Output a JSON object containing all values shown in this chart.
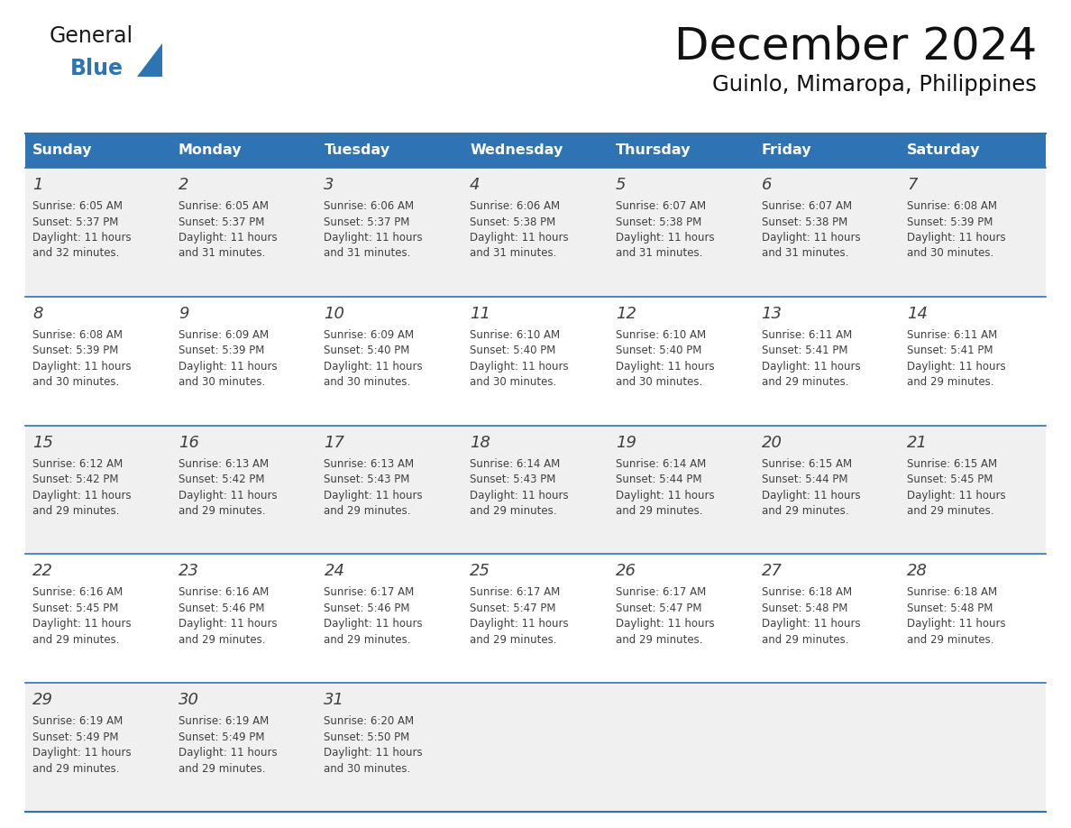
{
  "title": "December 2024",
  "subtitle": "Guinlo, Mimaropa, Philippines",
  "header_bg": "#2E74B5",
  "header_text": "#FFFFFF",
  "header_days": [
    "Sunday",
    "Monday",
    "Tuesday",
    "Wednesday",
    "Thursday",
    "Friday",
    "Saturday"
  ],
  "row_bg_odd": "#F0F0F0",
  "row_bg_even": "#FFFFFF",
  "divider_color": "#2E74B5",
  "text_color": "#404040",
  "date_color": "#404040",
  "logo_general_color": "#1a1a1a",
  "logo_blue_color": "#2E74B5",
  "weeks": [
    {
      "days": [
        {
          "date": "1",
          "sunrise": "6:05 AM",
          "sunset": "5:37 PM",
          "daylight": "11 hours and 32 minutes."
        },
        {
          "date": "2",
          "sunrise": "6:05 AM",
          "sunset": "5:37 PM",
          "daylight": "11 hours and 31 minutes."
        },
        {
          "date": "3",
          "sunrise": "6:06 AM",
          "sunset": "5:37 PM",
          "daylight": "11 hours and 31 minutes."
        },
        {
          "date": "4",
          "sunrise": "6:06 AM",
          "sunset": "5:38 PM",
          "daylight": "11 hours and 31 minutes."
        },
        {
          "date": "5",
          "sunrise": "6:07 AM",
          "sunset": "5:38 PM",
          "daylight": "11 hours and 31 minutes."
        },
        {
          "date": "6",
          "sunrise": "6:07 AM",
          "sunset": "5:38 PM",
          "daylight": "11 hours and 31 minutes."
        },
        {
          "date": "7",
          "sunrise": "6:08 AM",
          "sunset": "5:39 PM",
          "daylight": "11 hours and 30 minutes."
        }
      ]
    },
    {
      "days": [
        {
          "date": "8",
          "sunrise": "6:08 AM",
          "sunset": "5:39 PM",
          "daylight": "11 hours and 30 minutes."
        },
        {
          "date": "9",
          "sunrise": "6:09 AM",
          "sunset": "5:39 PM",
          "daylight": "11 hours and 30 minutes."
        },
        {
          "date": "10",
          "sunrise": "6:09 AM",
          "sunset": "5:40 PM",
          "daylight": "11 hours and 30 minutes."
        },
        {
          "date": "11",
          "sunrise": "6:10 AM",
          "sunset": "5:40 PM",
          "daylight": "11 hours and 30 minutes."
        },
        {
          "date": "12",
          "sunrise": "6:10 AM",
          "sunset": "5:40 PM",
          "daylight": "11 hours and 30 minutes."
        },
        {
          "date": "13",
          "sunrise": "6:11 AM",
          "sunset": "5:41 PM",
          "daylight": "11 hours and 29 minutes."
        },
        {
          "date": "14",
          "sunrise": "6:11 AM",
          "sunset": "5:41 PM",
          "daylight": "11 hours and 29 minutes."
        }
      ]
    },
    {
      "days": [
        {
          "date": "15",
          "sunrise": "6:12 AM",
          "sunset": "5:42 PM",
          "daylight": "11 hours and 29 minutes."
        },
        {
          "date": "16",
          "sunrise": "6:13 AM",
          "sunset": "5:42 PM",
          "daylight": "11 hours and 29 minutes."
        },
        {
          "date": "17",
          "sunrise": "6:13 AM",
          "sunset": "5:43 PM",
          "daylight": "11 hours and 29 minutes."
        },
        {
          "date": "18",
          "sunrise": "6:14 AM",
          "sunset": "5:43 PM",
          "daylight": "11 hours and 29 minutes."
        },
        {
          "date": "19",
          "sunrise": "6:14 AM",
          "sunset": "5:44 PM",
          "daylight": "11 hours and 29 minutes."
        },
        {
          "date": "20",
          "sunrise": "6:15 AM",
          "sunset": "5:44 PM",
          "daylight": "11 hours and 29 minutes."
        },
        {
          "date": "21",
          "sunrise": "6:15 AM",
          "sunset": "5:45 PM",
          "daylight": "11 hours and 29 minutes."
        }
      ]
    },
    {
      "days": [
        {
          "date": "22",
          "sunrise": "6:16 AM",
          "sunset": "5:45 PM",
          "daylight": "11 hours and 29 minutes."
        },
        {
          "date": "23",
          "sunrise": "6:16 AM",
          "sunset": "5:46 PM",
          "daylight": "11 hours and 29 minutes."
        },
        {
          "date": "24",
          "sunrise": "6:17 AM",
          "sunset": "5:46 PM",
          "daylight": "11 hours and 29 minutes."
        },
        {
          "date": "25",
          "sunrise": "6:17 AM",
          "sunset": "5:47 PM",
          "daylight": "11 hours and 29 minutes."
        },
        {
          "date": "26",
          "sunrise": "6:17 AM",
          "sunset": "5:47 PM",
          "daylight": "11 hours and 29 minutes."
        },
        {
          "date": "27",
          "sunrise": "6:18 AM",
          "sunset": "5:48 PM",
          "daylight": "11 hours and 29 minutes."
        },
        {
          "date": "28",
          "sunrise": "6:18 AM",
          "sunset": "5:48 PM",
          "daylight": "11 hours and 29 minutes."
        }
      ]
    },
    {
      "days": [
        {
          "date": "29",
          "sunrise": "6:19 AM",
          "sunset": "5:49 PM",
          "daylight": "11 hours and 29 minutes."
        },
        {
          "date": "30",
          "sunrise": "6:19 AM",
          "sunset": "5:49 PM",
          "daylight": "11 hours and 29 minutes."
        },
        {
          "date": "31",
          "sunrise": "6:20 AM",
          "sunset": "5:50 PM",
          "daylight": "11 hours and 30 minutes."
        },
        {
          "date": "",
          "sunrise": "",
          "sunset": "",
          "daylight": ""
        },
        {
          "date": "",
          "sunrise": "",
          "sunset": "",
          "daylight": ""
        },
        {
          "date": "",
          "sunrise": "",
          "sunset": "",
          "daylight": ""
        },
        {
          "date": "",
          "sunrise": "",
          "sunset": "",
          "daylight": ""
        }
      ]
    }
  ],
  "fig_width": 11.88,
  "fig_height": 9.18,
  "dpi": 100
}
